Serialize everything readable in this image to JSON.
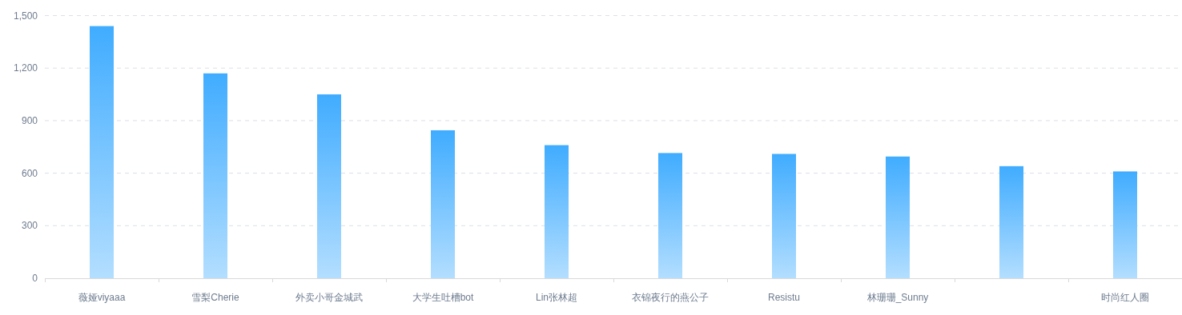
{
  "chart_data": {
    "type": "bar",
    "categories": [
      "薇娅viyaaa",
      "雪梨Cherie",
      "外卖小哥金城武",
      "大学生吐槽bot",
      "Lin张林超",
      "衣锦夜行的燕公子",
      "Resistu",
      "林珊珊_Sunny",
      null,
      "时尚红人圈"
    ],
    "values": [
      1440,
      1170,
      1050,
      845,
      760,
      715,
      710,
      695,
      640,
      610
    ],
    "color": "#40acff",
    "ylim": [
      0,
      1500
    ],
    "yticks": [
      0,
      300,
      600,
      900,
      {
        "value": 1200,
        "label": "1,200"
      },
      {
        "value": 1500,
        "label": "1,500"
      }
    ],
    "grid": "y"
  }
}
